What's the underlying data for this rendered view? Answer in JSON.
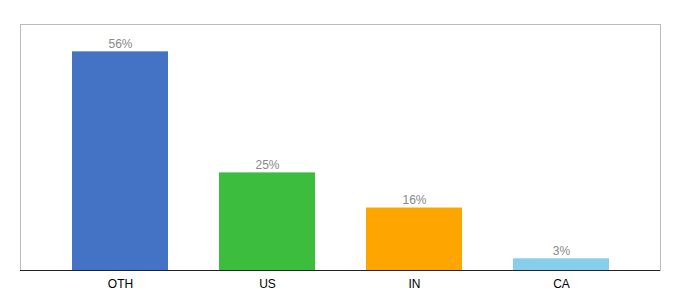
{
  "chart_data": {
    "type": "bar",
    "categories": [
      "OTH",
      "US",
      "IN",
      "CA"
    ],
    "values": [
      56,
      25,
      16,
      3
    ],
    "value_labels": [
      "56%",
      "25%",
      "16%",
      "3%"
    ],
    "data_labels": true,
    "colors": [
      "#4472C4",
      "#3DBD3D",
      "#FFA500",
      "#87CEEB"
    ],
    "ylim": [
      0,
      63
    ],
    "tick_labels": "x",
    "grid": false
  }
}
